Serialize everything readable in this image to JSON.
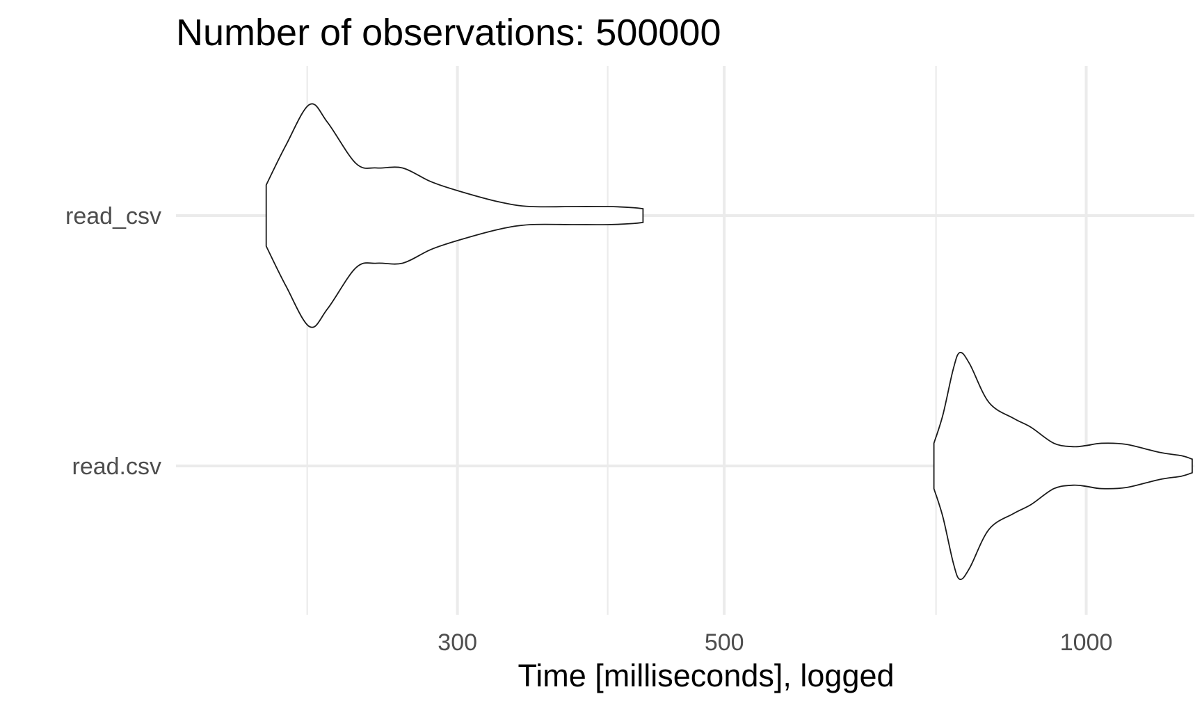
{
  "chart_data": {
    "type": "violin",
    "title": "Number of observations: 500000",
    "xlabel": "Time [milliseconds], logged",
    "ylabel": "",
    "x_scale": "log",
    "xlim": [
      175,
      1230
    ],
    "x_ticks": [
      300,
      500,
      1000
    ],
    "x_tick_labels": [
      "300",
      "500",
      "1000"
    ],
    "x_minor_gridlines": [
      225,
      400,
      750
    ],
    "grid": true,
    "categories": [
      "read_csv",
      "read.csv"
    ],
    "series": [
      {
        "category": "read_csv",
        "min": 208,
        "max": 428,
        "density_profile": [
          {
            "x": 208,
            "width": 0.27
          },
          {
            "x": 216,
            "width": 0.62
          },
          {
            "x": 226,
            "width": 0.98
          },
          {
            "x": 234,
            "width": 0.82
          },
          {
            "x": 247,
            "width": 0.46
          },
          {
            "x": 257,
            "width": 0.42
          },
          {
            "x": 270,
            "width": 0.42
          },
          {
            "x": 285,
            "width": 0.3
          },
          {
            "x": 300,
            "width": 0.22
          },
          {
            "x": 325,
            "width": 0.12
          },
          {
            "x": 345,
            "width": 0.08
          },
          {
            "x": 375,
            "width": 0.08
          },
          {
            "x": 400,
            "width": 0.08
          },
          {
            "x": 420,
            "width": 0.07
          },
          {
            "x": 428,
            "width": 0.06
          }
        ]
      },
      {
        "category": "read.csv",
        "min": 747,
        "max": 1225,
        "density_profile": [
          {
            "x": 747,
            "width": 0.2
          },
          {
            "x": 760,
            "width": 0.45
          },
          {
            "x": 775,
            "width": 0.85
          },
          {
            "x": 785,
            "width": 1.0
          },
          {
            "x": 800,
            "width": 0.9
          },
          {
            "x": 830,
            "width": 0.56
          },
          {
            "x": 870,
            "width": 0.42
          },
          {
            "x": 900,
            "width": 0.34
          },
          {
            "x": 940,
            "width": 0.2
          },
          {
            "x": 975,
            "width": 0.17
          },
          {
            "x": 1000,
            "width": 0.18
          },
          {
            "x": 1030,
            "width": 0.2
          },
          {
            "x": 1080,
            "width": 0.19
          },
          {
            "x": 1150,
            "width": 0.12
          },
          {
            "x": 1200,
            "width": 0.09
          },
          {
            "x": 1225,
            "width": 0.06
          }
        ]
      }
    ]
  }
}
